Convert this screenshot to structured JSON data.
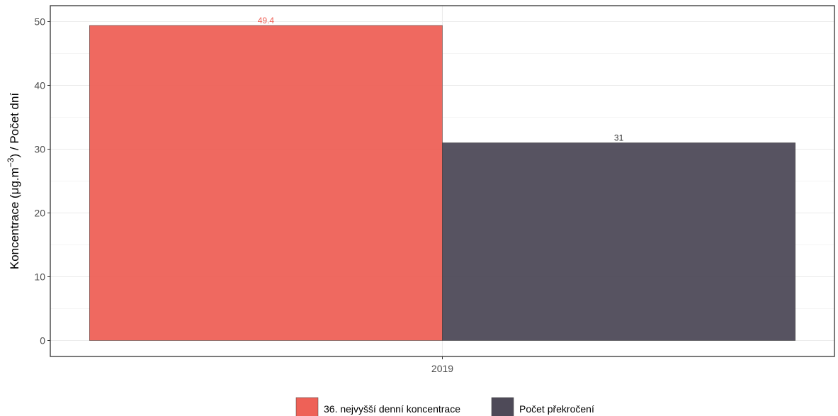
{
  "chart_data": {
    "type": "bar",
    "categories": [
      "2019"
    ],
    "series": [
      {
        "name": "36. nejvyšší denní koncentrace",
        "values": [
          49.4
        ],
        "label": "49.4",
        "color": "#ee6157",
        "label_color": "#ee6157"
      },
      {
        "name": "Počet překročení",
        "values": [
          31
        ],
        "label": "31",
        "color": "#4e4a58",
        "label_color": "#333333"
      }
    ],
    "y_ticks": [
      0,
      10,
      20,
      30,
      40,
      50
    ],
    "y_tick_labels": [
      "0",
      "10",
      "20",
      "30",
      "40",
      "50"
    ],
    "ylim": [
      -2.5,
      52.5
    ],
    "ylabel_main": "Koncentrace (μg.m",
    "ylabel_exponent": "−3",
    "ylabel_tail": ") / Počet dní",
    "xlabel": "",
    "grid": true,
    "legend_position": "bottom",
    "panel_border_color": "#333333",
    "grid_color": "#ebebeb"
  }
}
